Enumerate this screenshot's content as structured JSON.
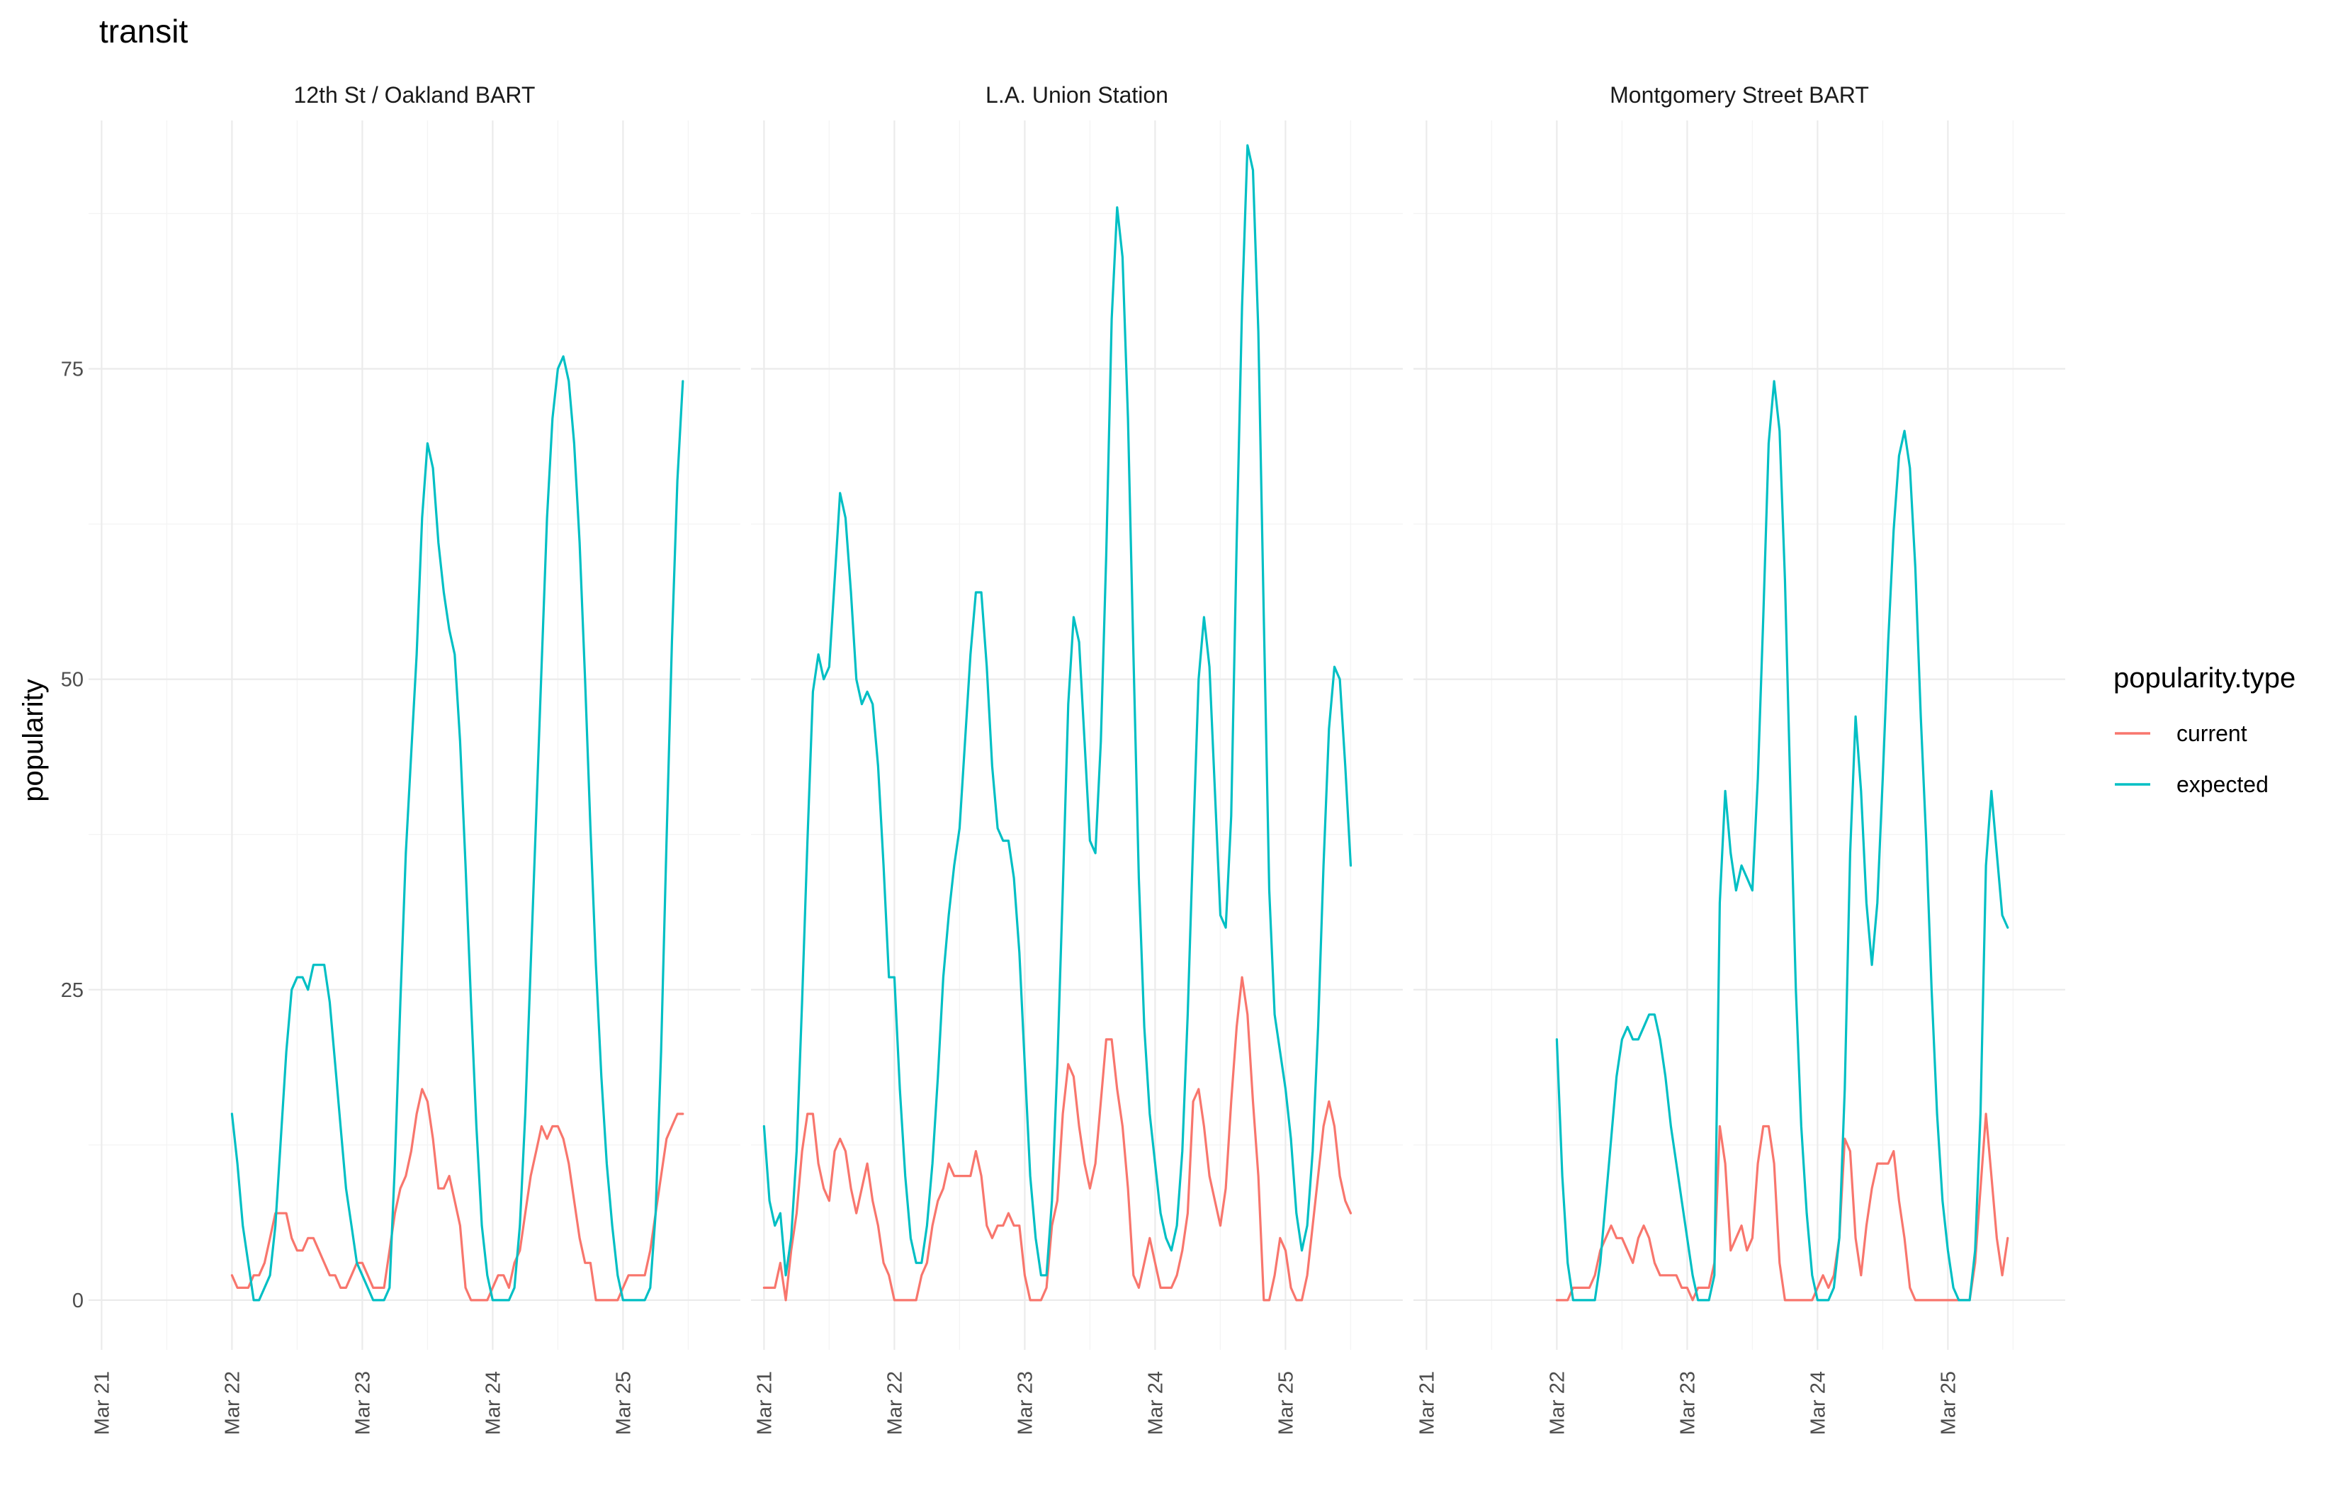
{
  "chart_data": {
    "type": "line",
    "title": "transit",
    "xlabel": "",
    "ylabel": "popularity",
    "ylim": [
      -4,
      95
    ],
    "yticks": [
      0,
      25,
      50,
      75
    ],
    "xlim": [
      -0.1,
      4.9
    ],
    "xtick_positions": [
      0,
      1,
      2,
      3,
      4
    ],
    "xtick_labels": [
      "Mar 21",
      "Mar 22",
      "Mar 23",
      "Mar 24",
      "Mar 25"
    ],
    "x_unit": "days since Mar 21 00:00",
    "grid": true,
    "legend": {
      "title": "popularity.type",
      "position": "right",
      "entries": [
        {
          "name": "current",
          "color": "#F8766D"
        },
        {
          "name": "expected",
          "color": "#00BFC4"
        }
      ]
    },
    "panels": [
      {
        "name": "12th St / Oakland BART",
        "series": [
          {
            "name": "current",
            "color": "#F8766D",
            "start": 1.0,
            "step": 0.04167,
            "values": [
              2,
              1,
              1,
              1,
              2,
              2,
              3,
              5,
              7,
              7,
              7,
              5,
              4,
              4,
              5,
              5,
              4,
              3,
              2,
              2,
              1,
              1,
              2,
              3,
              3,
              2,
              1,
              1,
              1,
              4,
              7,
              9,
              10,
              12,
              15,
              17,
              16,
              13,
              9,
              9,
              10,
              8,
              6,
              1,
              0,
              0,
              0,
              0,
              1,
              2,
              2,
              1,
              3,
              4,
              7,
              10,
              12,
              14,
              13,
              14,
              14,
              13,
              11,
              8,
              5,
              3,
              3,
              0,
              0,
              0,
              0,
              0,
              1,
              2,
              2,
              2,
              2,
              4,
              7,
              10,
              13,
              14,
              15,
              15
            ]
          },
          {
            "name": "expected",
            "color": "#00BFC4",
            "start": 1.0,
            "step": 0.04167,
            "values": [
              15,
              11,
              6,
              3,
              0,
              0,
              1,
              2,
              6,
              13,
              20,
              25,
              26,
              26,
              25,
              27,
              27,
              27,
              24,
              19,
              14,
              9,
              6,
              3,
              2,
              1,
              0,
              0,
              0,
              1,
              11,
              24,
              36,
              44,
              52,
              63,
              69,
              67,
              61,
              57,
              54,
              52,
              45,
              35,
              24,
              14,
              6,
              2,
              0,
              0,
              0,
              0,
              1,
              6,
              15,
              27,
              39,
              51,
              63,
              71,
              75,
              76,
              74,
              69,
              61,
              50,
              38,
              27,
              18,
              11,
              6,
              2,
              0,
              0,
              0,
              0,
              0,
              1,
              7,
              20,
              37,
              53,
              66,
              74
            ]
          }
        ]
      },
      {
        "name": "L.A. Union Station",
        "series": [
          {
            "name": "current",
            "color": "#F8766D",
            "start": 0.0,
            "step": 0.04167,
            "values": [
              1,
              1,
              1,
              3,
              0,
              4,
              7,
              12,
              15,
              15,
              11,
              9,
              8,
              12,
              13,
              12,
              9,
              7,
              9,
              11,
              8,
              6,
              3,
              2,
              0,
              0,
              0,
              0,
              0,
              2,
              3,
              6,
              8,
              9,
              11,
              10,
              10,
              10,
              10,
              12,
              10,
              6,
              5,
              6,
              6,
              7,
              6,
              6,
              2,
              0,
              0,
              0,
              1,
              6,
              8,
              15,
              19,
              18,
              14,
              11,
              9,
              11,
              16,
              21,
              21,
              17,
              14,
              9,
              2,
              1,
              3,
              5,
              3,
              1,
              1,
              1,
              2,
              4,
              7,
              16,
              17,
              14,
              10,
              8,
              6,
              9,
              16,
              22,
              26,
              23,
              16,
              10,
              0,
              0,
              2,
              5,
              4,
              1,
              0,
              0,
              2,
              6,
              10,
              14,
              16,
              14,
              10,
              8,
              7
            ]
          },
          {
            "name": "expected",
            "color": "#00BFC4",
            "start": 0.0,
            "step": 0.04167,
            "values": [
              14,
              8,
              6,
              7,
              2,
              5,
              12,
              24,
              37,
              49,
              52,
              50,
              51,
              58,
              65,
              63,
              57,
              50,
              48,
              49,
              48,
              43,
              35,
              26,
              26,
              17,
              10,
              5,
              3,
              3,
              6,
              11,
              18,
              26,
              31,
              35,
              38,
              45,
              52,
              57,
              57,
              51,
              43,
              38,
              37,
              37,
              34,
              28,
              19,
              10,
              5,
              2,
              2,
              8,
              19,
              33,
              48,
              55,
              53,
              45,
              37,
              36,
              45,
              60,
              79,
              88,
              84,
              71,
              52,
              34,
              22,
              15,
              11,
              7,
              5,
              4,
              6,
              12,
              23,
              37,
              50,
              55,
              51,
              41,
              31,
              30,
              39,
              61,
              80,
              93,
              91,
              78,
              55,
              33,
              23,
              20,
              17,
              13,
              7,
              4,
              6,
              12,
              22,
              35,
              46,
              51,
              50,
              43,
              35
            ]
          }
        ]
      },
      {
        "name": "Montgomery Street BART",
        "series": [
          {
            "name": "current",
            "color": "#F8766D",
            "start": 1.0,
            "step": 0.04167,
            "values": [
              0,
              0,
              0,
              1,
              1,
              1,
              1,
              2,
              4,
              5,
              6,
              5,
              5,
              4,
              3,
              5,
              6,
              5,
              3,
              2,
              2,
              2,
              2,
              1,
              1,
              0,
              1,
              1,
              1,
              3,
              14,
              11,
              4,
              5,
              6,
              4,
              5,
              11,
              14,
              14,
              11,
              3,
              0,
              0,
              0,
              0,
              0,
              0,
              1,
              2,
              1,
              2,
              5,
              13,
              12,
              5,
              2,
              6,
              9,
              11,
              11,
              11,
              12,
              8,
              5,
              1,
              0,
              0,
              0,
              0,
              0,
              0,
              0,
              0,
              0,
              0,
              0,
              3,
              9,
              15,
              10,
              5,
              2,
              5
            ]
          },
          {
            "name": "expected",
            "color": "#00BFC4",
            "start": 1.0,
            "step": 0.04167,
            "values": [
              21,
              10,
              3,
              0,
              0,
              0,
              0,
              0,
              3,
              8,
              13,
              18,
              21,
              22,
              21,
              21,
              22,
              23,
              23,
              21,
              18,
              14,
              11,
              8,
              5,
              2,
              0,
              0,
              0,
              2,
              32,
              41,
              36,
              33,
              35,
              34,
              33,
              42,
              55,
              69,
              74,
              70,
              58,
              41,
              25,
              14,
              7,
              2,
              0,
              0,
              0,
              1,
              5,
              17,
              36,
              47,
              41,
              32,
              27,
              32,
              42,
              53,
              62,
              68,
              70,
              67,
              59,
              47,
              37,
              25,
              15,
              8,
              4,
              1,
              0,
              0,
              0,
              4,
              15,
              35,
              41,
              36,
              31,
              30
            ]
          }
        ]
      }
    ]
  }
}
